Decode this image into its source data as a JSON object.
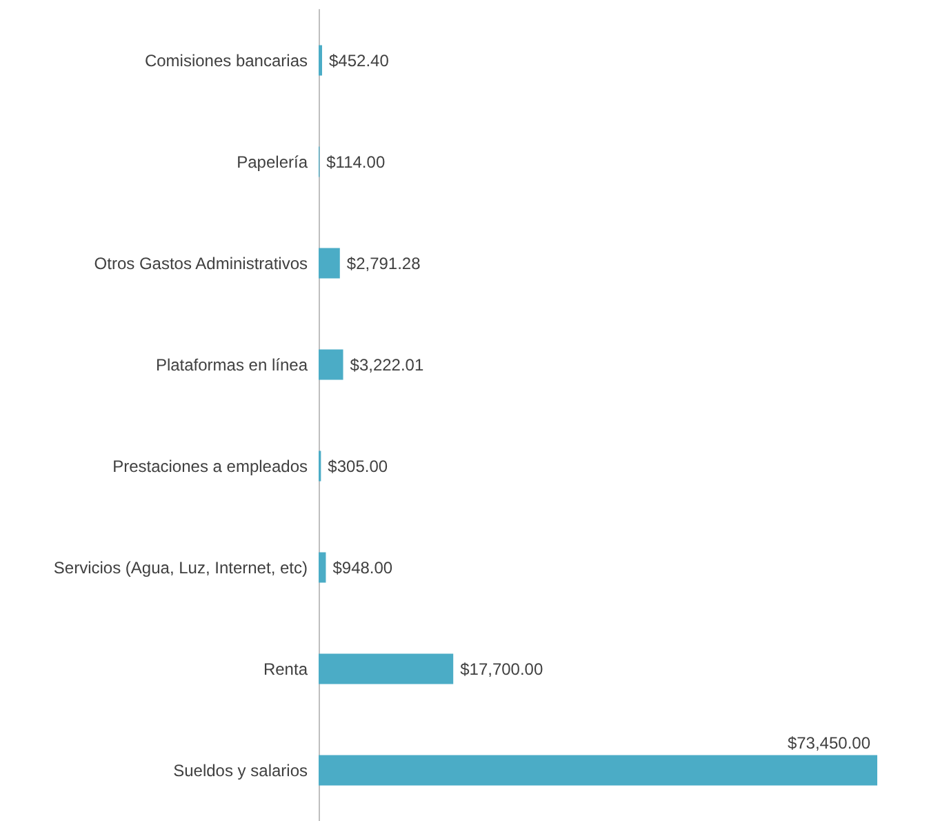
{
  "chart_data": {
    "type": "bar",
    "orientation": "horizontal",
    "categories": [
      "Comisiones bancarias",
      "Papelería",
      "Otros Gastos Administrativos",
      "Plataformas en línea",
      "Prestaciones a empleados",
      "Servicios (Agua, Luz, Internet, etc)",
      "Renta",
      "Sueldos y salarios"
    ],
    "values": [
      452.4,
      114,
      2791.28,
      3222.01,
      305,
      948,
      17700,
      73450
    ],
    "value_labels": [
      "$452.40",
      "$114.00",
      "$2,791.28",
      "$3,222.01",
      "$305.00",
      "$948.00",
      "$17,700.00",
      "$73,450.00"
    ],
    "color": "#4bacc6"
  }
}
